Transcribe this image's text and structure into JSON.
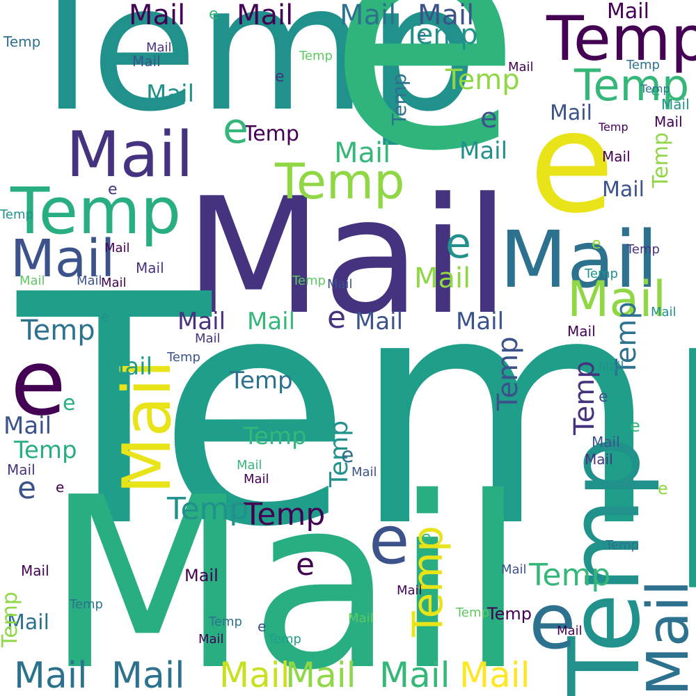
{
  "words": {
    "temp": "Temp",
    "mail": "Mail",
    "e": "e"
  },
  "palette": [
    "#440154",
    "#46337f",
    "#3b528b",
    "#2c728e",
    "#21918c",
    "#1f9e89",
    "#28ae80",
    "#35b779",
    "#5ec962",
    "#8fd744",
    "#c8e020",
    "#fde725"
  ]
}
